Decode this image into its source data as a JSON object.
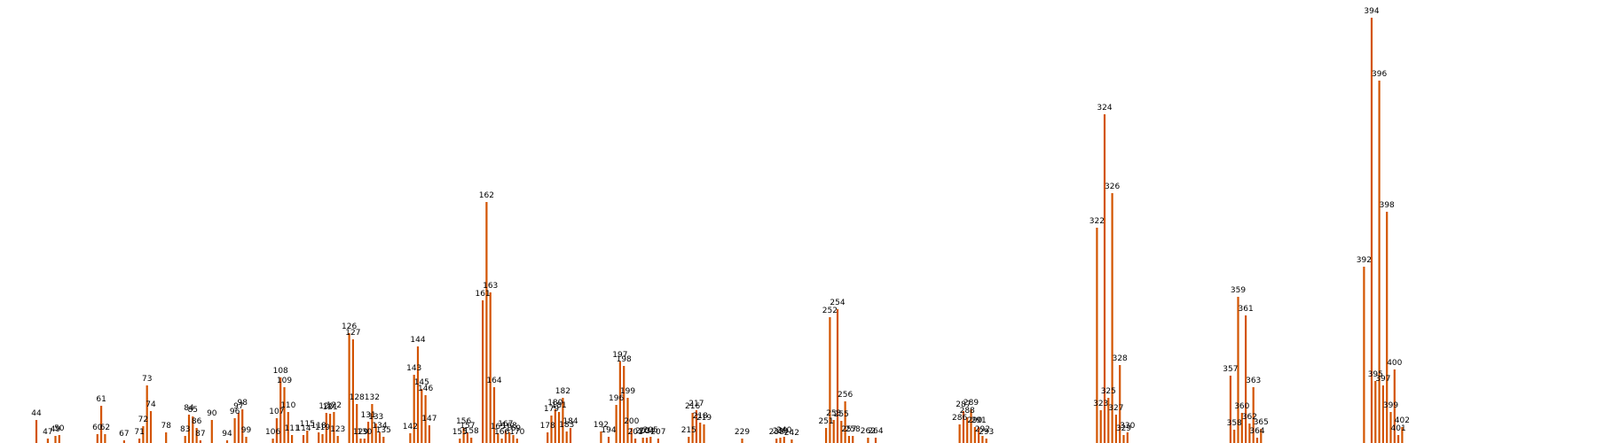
{
  "chart_data": {
    "type": "bar",
    "title": "",
    "xlabel": "",
    "ylabel": "",
    "axes_visible": false,
    "grid": false,
    "legend": "none",
    "bar_color": "#d35400",
    "label_color": "#000000",
    "xlim": [
      10,
      426
    ],
    "ylim": [
      0,
      425
    ],
    "points": [
      {
        "x": 44,
        "v": 26,
        "label": "44"
      },
      {
        "x": 47,
        "v": 5,
        "label": "47"
      },
      {
        "x": 49,
        "v": 8,
        "label": "49"
      },
      {
        "x": 50,
        "v": 9,
        "label": "50"
      },
      {
        "x": 60,
        "v": 10,
        "label": "60"
      },
      {
        "x": 61,
        "v": 42,
        "label": "61"
      },
      {
        "x": 62,
        "v": 10,
        "label": "62"
      },
      {
        "x": 67,
        "v": 3,
        "label": "67"
      },
      {
        "x": 71,
        "v": 5,
        "label": "71"
      },
      {
        "x": 72,
        "v": 19,
        "label": "72"
      },
      {
        "x": 73,
        "v": 65,
        "label": "73"
      },
      {
        "x": 74,
        "v": 36,
        "label": "74"
      },
      {
        "x": 78,
        "v": 12,
        "label": "78"
      },
      {
        "x": 83,
        "v": 8,
        "label": "83"
      },
      {
        "x": 84,
        "v": 32,
        "label": "84"
      },
      {
        "x": 85,
        "v": 30,
        "label": "85"
      },
      {
        "x": 86,
        "v": 17,
        "label": "86"
      },
      {
        "x": 87,
        "v": 3,
        "label": "87"
      },
      {
        "x": 90,
        "v": 26,
        "label": "90"
      },
      {
        "x": 94,
        "v": 3,
        "label": "94"
      },
      {
        "x": 96,
        "v": 28,
        "label": "96"
      },
      {
        "x": 97,
        "v": 34,
        "label": "97"
      },
      {
        "x": 98,
        "v": 38,
        "label": "98"
      },
      {
        "x": 99,
        "v": 7,
        "label": "99"
      },
      {
        "x": 106,
        "v": 5,
        "label": "106"
      },
      {
        "x": 107,
        "v": 28,
        "label": "107"
      },
      {
        "x": 108,
        "v": 74,
        "label": "108"
      },
      {
        "x": 109,
        "v": 63,
        "label": "109"
      },
      {
        "x": 110,
        "v": 35,
        "label": "110"
      },
      {
        "x": 111,
        "v": 9,
        "label": "111"
      },
      {
        "x": 114,
        "v": 9,
        "label": "114"
      },
      {
        "x": 115,
        "v": 14,
        "label": "115"
      },
      {
        "x": 118,
        "v": 12,
        "label": "118"
      },
      {
        "x": 119,
        "v": 10,
        "label": "119"
      },
      {
        "x": 120,
        "v": 34,
        "label": "120"
      },
      {
        "x": 121,
        "v": 33,
        "label": "121"
      },
      {
        "x": 122,
        "v": 35,
        "label": "122"
      },
      {
        "x": 123,
        "v": 8,
        "label": "123"
      },
      {
        "x": 126,
        "v": 124,
        "label": "126"
      },
      {
        "x": 127,
        "v": 117,
        "label": "127"
      },
      {
        "x": 128,
        "v": 44,
        "label": "128"
      },
      {
        "x": 129,
        "v": 5,
        "label": "129"
      },
      {
        "x": 130,
        "v": 5,
        "label": "130"
      },
      {
        "x": 131,
        "v": 24,
        "label": "131"
      },
      {
        "x": 132,
        "v": 44,
        "label": "132"
      },
      {
        "x": 133,
        "v": 22,
        "label": "133"
      },
      {
        "x": 134,
        "v": 12,
        "label": "134"
      },
      {
        "x": 135,
        "v": 7,
        "label": "135"
      },
      {
        "x": 142,
        "v": 11,
        "label": "142"
      },
      {
        "x": 143,
        "v": 77,
        "label": "143"
      },
      {
        "x": 144,
        "v": 109,
        "label": "144"
      },
      {
        "x": 145,
        "v": 61,
        "label": "145"
      },
      {
        "x": 146,
        "v": 54,
        "label": "146"
      },
      {
        "x": 147,
        "v": 20,
        "label": "147"
      },
      {
        "x": 155,
        "v": 5,
        "label": "155"
      },
      {
        "x": 156,
        "v": 17,
        "label": "156"
      },
      {
        "x": 157,
        "v": 12,
        "label": "157"
      },
      {
        "x": 158,
        "v": 6,
        "label": "158"
      },
      {
        "x": 161,
        "v": 161,
        "label": "161"
      },
      {
        "x": 162,
        "v": 272,
        "label": "162"
      },
      {
        "x": 163,
        "v": 170,
        "label": "163"
      },
      {
        "x": 164,
        "v": 63,
        "label": "164"
      },
      {
        "x": 165,
        "v": 11,
        "label": "165"
      },
      {
        "x": 166,
        "v": 5,
        "label": "166"
      },
      {
        "x": 167,
        "v": 14,
        "label": "167"
      },
      {
        "x": 168,
        "v": 12,
        "label": "168"
      },
      {
        "x": 169,
        "v": 9,
        "label": "169"
      },
      {
        "x": 170,
        "v": 5,
        "label": "170"
      },
      {
        "x": 178,
        "v": 12,
        "label": "178"
      },
      {
        "x": 179,
        "v": 31,
        "label": "179"
      },
      {
        "x": 180,
        "v": 38,
        "label": "180"
      },
      {
        "x": 181,
        "v": 35,
        "label": "181"
      },
      {
        "x": 182,
        "v": 51,
        "label": "182"
      },
      {
        "x": 183,
        "v": 13,
        "label": "183"
      },
      {
        "x": 184,
        "v": 17,
        "label": "184"
      },
      {
        "x": 192,
        "v": 13,
        "label": "192"
      },
      {
        "x": 194,
        "v": 7,
        "label": "194"
      },
      {
        "x": 196,
        "v": 43,
        "label": "196"
      },
      {
        "x": 197,
        "v": 92,
        "label": "197"
      },
      {
        "x": 198,
        "v": 87,
        "label": "198"
      },
      {
        "x": 199,
        "v": 51,
        "label": "199"
      },
      {
        "x": 200,
        "v": 17,
        "label": "200"
      },
      {
        "x": 201,
        "v": 5,
        "label": "201"
      },
      {
        "x": 203,
        "v": 6,
        "label": "203"
      },
      {
        "x": 204,
        "v": 6,
        "label": "204"
      },
      {
        "x": 205,
        "v": 7,
        "label": "205"
      },
      {
        "x": 207,
        "v": 5,
        "label": "207"
      },
      {
        "x": 215,
        "v": 7,
        "label": "215"
      },
      {
        "x": 216,
        "v": 34,
        "label": "216"
      },
      {
        "x": 217,
        "v": 37,
        "label": "217"
      },
      {
        "x": 218,
        "v": 23,
        "label": "218"
      },
      {
        "x": 219,
        "v": 21,
        "label": "219"
      },
      {
        "x": 229,
        "v": 5,
        "label": "229"
      },
      {
        "x": 238,
        "v": 5,
        "label": "238"
      },
      {
        "x": 239,
        "v": 6,
        "label": "239"
      },
      {
        "x": 240,
        "v": 7,
        "label": "240"
      },
      {
        "x": 242,
        "v": 4,
        "label": "242"
      },
      {
        "x": 251,
        "v": 17,
        "label": "251"
      },
      {
        "x": 252,
        "v": 142,
        "label": "252"
      },
      {
        "x": 253,
        "v": 26,
        "label": "253"
      },
      {
        "x": 254,
        "v": 151,
        "label": "254"
      },
      {
        "x": 255,
        "v": 25,
        "label": "255"
      },
      {
        "x": 256,
        "v": 47,
        "label": "256"
      },
      {
        "x": 257,
        "v": 8,
        "label": "257"
      },
      {
        "x": 258,
        "v": 8,
        "label": "258"
      },
      {
        "x": 262,
        "v": 6,
        "label": "262"
      },
      {
        "x": 264,
        "v": 6,
        "label": "264"
      },
      {
        "x": 286,
        "v": 21,
        "label": "286"
      },
      {
        "x": 287,
        "v": 36,
        "label": "287"
      },
      {
        "x": 288,
        "v": 29,
        "label": "288"
      },
      {
        "x": 289,
        "v": 38,
        "label": "289"
      },
      {
        "x": 290,
        "v": 18,
        "label": "290"
      },
      {
        "x": 291,
        "v": 18,
        "label": "291"
      },
      {
        "x": 292,
        "v": 8,
        "label": "292"
      },
      {
        "x": 293,
        "v": 5,
        "label": "293"
      },
      {
        "x": 322,
        "v": 243,
        "label": "322"
      },
      {
        "x": 323,
        "v": 37,
        "label": "323"
      },
      {
        "x": 324,
        "v": 371,
        "label": "324"
      },
      {
        "x": 325,
        "v": 51,
        "label": "325"
      },
      {
        "x": 326,
        "v": 282,
        "label": "326"
      },
      {
        "x": 327,
        "v": 32,
        "label": "327"
      },
      {
        "x": 328,
        "v": 88,
        "label": "328"
      },
      {
        "x": 329,
        "v": 9,
        "label": "329"
      },
      {
        "x": 330,
        "v": 12,
        "label": "330"
      },
      {
        "x": 357,
        "v": 76,
        "label": "357"
      },
      {
        "x": 358,
        "v": 15,
        "label": "358"
      },
      {
        "x": 359,
        "v": 165,
        "label": "359"
      },
      {
        "x": 360,
        "v": 34,
        "label": "360"
      },
      {
        "x": 361,
        "v": 144,
        "label": "361"
      },
      {
        "x": 362,
        "v": 22,
        "label": "362"
      },
      {
        "x": 363,
        "v": 63,
        "label": "363"
      },
      {
        "x": 364,
        "v": 6,
        "label": "364"
      },
      {
        "x": 365,
        "v": 16,
        "label": "365"
      },
      {
        "x": 392,
        "v": 199,
        "label": "392"
      },
      {
        "x": 394,
        "v": 480,
        "label": "394"
      },
      {
        "x": 395,
        "v": 70,
        "label": "395"
      },
      {
        "x": 396,
        "v": 409,
        "label": "396"
      },
      {
        "x": 397,
        "v": 65,
        "label": "397"
      },
      {
        "x": 398,
        "v": 261,
        "label": "398"
      },
      {
        "x": 399,
        "v": 35,
        "label": "399"
      },
      {
        "x": 400,
        "v": 83,
        "label": "400"
      },
      {
        "x": 401,
        "v": 9,
        "label": "401"
      },
      {
        "x": 402,
        "v": 18,
        "label": "402"
      }
    ]
  }
}
